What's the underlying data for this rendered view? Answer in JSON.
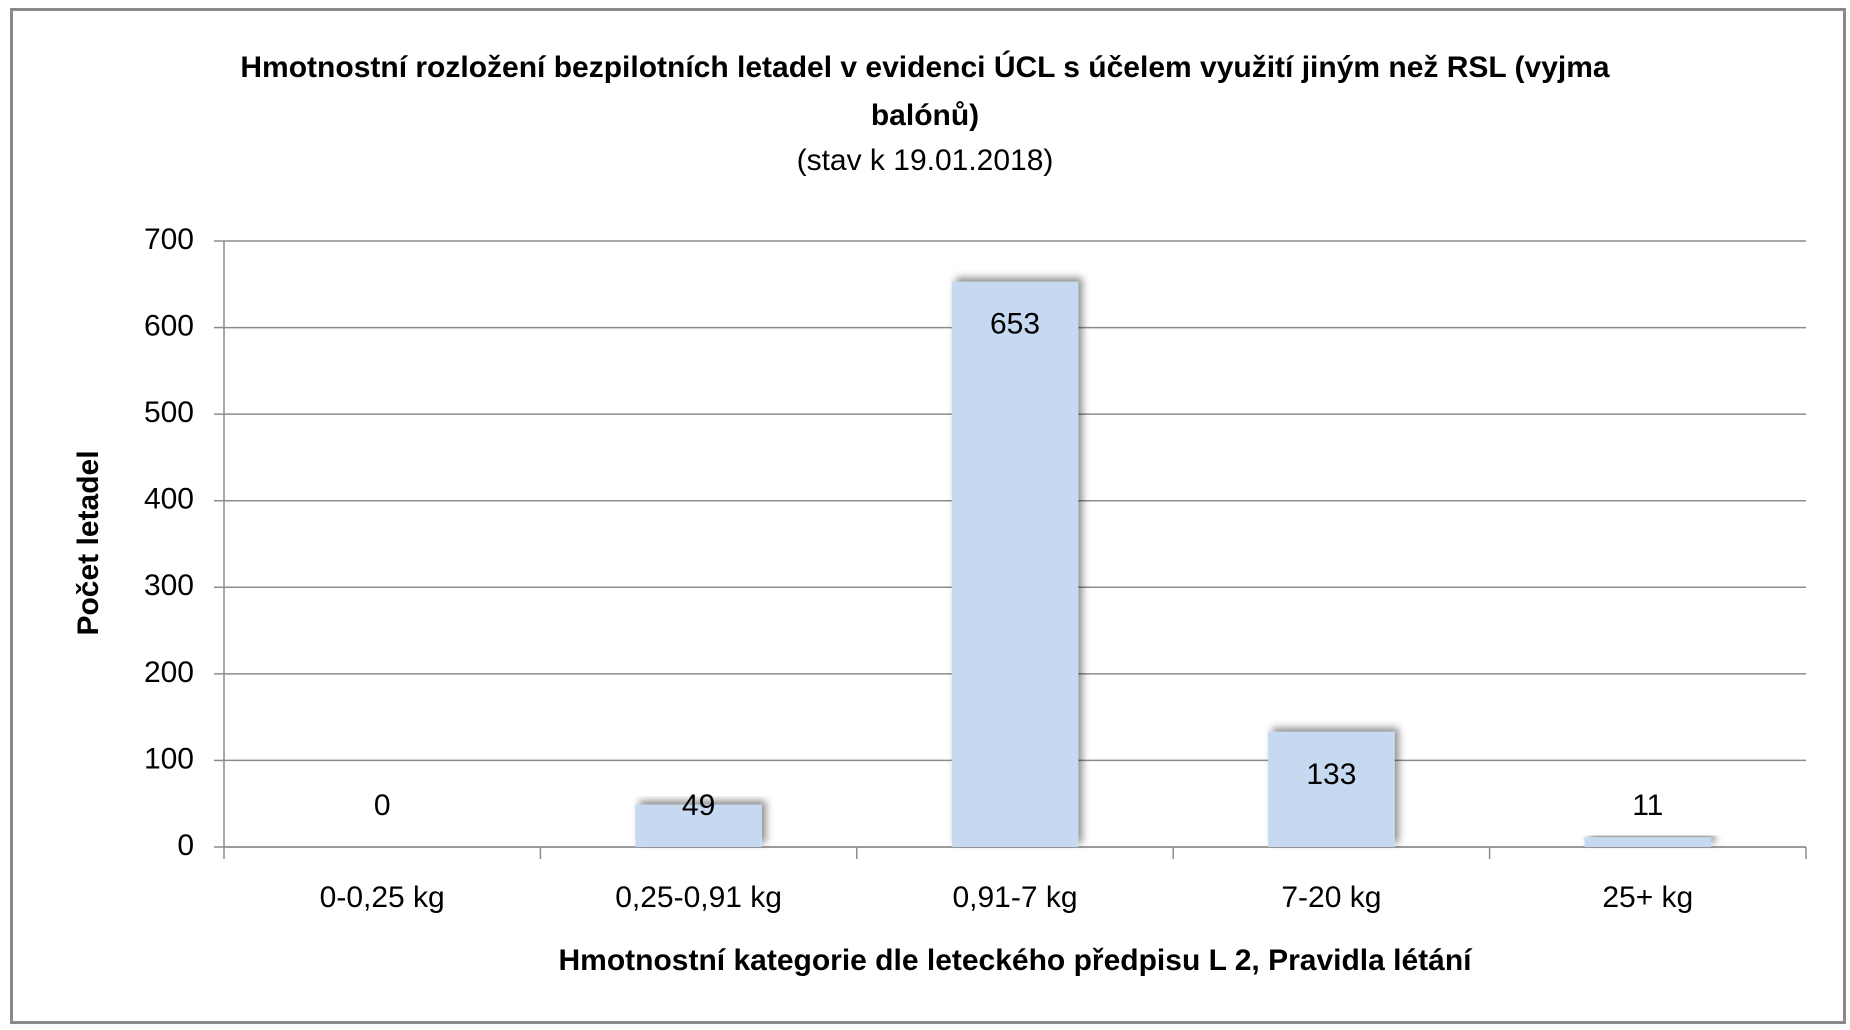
{
  "chart_data": {
    "type": "bar",
    "title": "Hmotnostní rozložení bezpilotních letadel v evidenci ÚCL s účelem využití jiným než RSL (vyjma balónů)",
    "subtitle": "(stav k 19.01.2018)",
    "x_label": "Hmotnostní kategorie dle leteckého předpisu L 2, Pravidla létání",
    "y_label": "Počet letadel",
    "categories": [
      "0-0,25 kg",
      "0,25-0,91 kg",
      "0,91-7 kg",
      "7-20 kg",
      "25+ kg"
    ],
    "values": [
      0,
      49,
      653,
      133,
      11
    ],
    "color": "#c6d9f1",
    "ylim": [
      0,
      700
    ],
    "yticks": [
      0,
      100,
      200,
      300,
      400,
      500,
      600,
      700
    ],
    "grid": true
  }
}
